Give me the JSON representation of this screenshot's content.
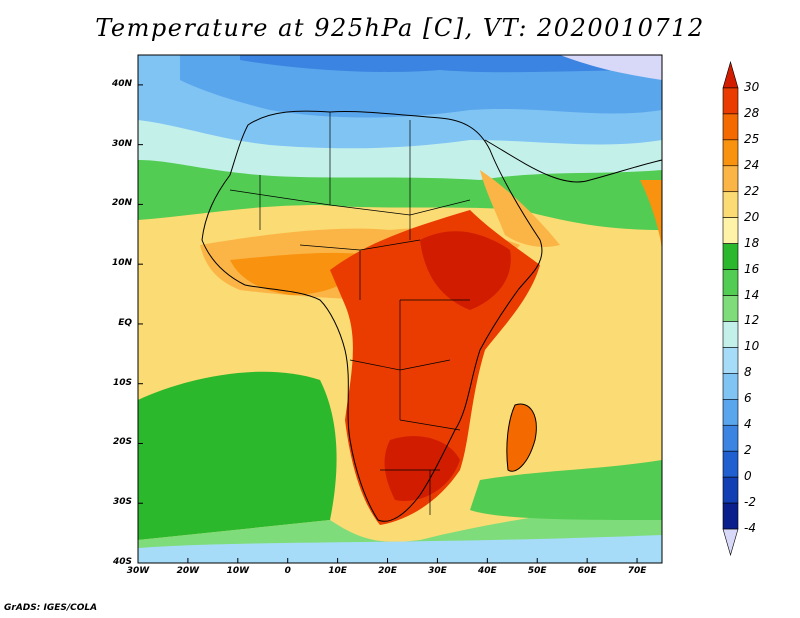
{
  "title": "Temperature at 925hPa [C], VT: 2020010712",
  "credit": "GrADS: IGES/COLA",
  "map": {
    "lat_range": [
      -40,
      45
    ],
    "lon_range": [
      -30,
      75
    ],
    "lat_ticks": [
      "40N",
      "30N",
      "20N",
      "10N",
      "EQ",
      "10S",
      "20S",
      "30S",
      "40S"
    ],
    "lat_tick_values": [
      40,
      30,
      20,
      10,
      0,
      -10,
      -20,
      -30,
      -40
    ],
    "lon_ticks": [
      "30W",
      "20W",
      "10W",
      "0",
      "10E",
      "20E",
      "30E",
      "40E",
      "50E",
      "60E",
      "70E"
    ],
    "lon_tick_values": [
      -30,
      -20,
      -10,
      0,
      10,
      20,
      30,
      40,
      50,
      60,
      70
    ]
  },
  "colorbar": {
    "labels": [
      "30",
      "28",
      "25",
      "24",
      "22",
      "20",
      "18",
      "16",
      "14",
      "12",
      "10",
      "8",
      "6",
      "4",
      "2",
      "0",
      "-2",
      "-4"
    ],
    "colors": [
      "#d11c00",
      "#ea3c00",
      "#f46a00",
      "#f9920f",
      "#fbb547",
      "#fbdb73",
      "#fff3a8",
      "#2cb82c",
      "#52cc52",
      "#7fdc7a",
      "#c4f0ea",
      "#a6dcf8",
      "#80c4f4",
      "#5aa6ec",
      "#3b84e1",
      "#1f5fcf",
      "#123fb4",
      "#0b1f8c",
      "#d8d8f8"
    ]
  },
  "regions": [
    {
      "name": "ocean-warm",
      "color": "#fbdb73"
    },
    {
      "name": "ocean-green",
      "color": "#2cb82c"
    },
    {
      "name": "north-cool",
      "color": "#5aa6ec"
    },
    {
      "name": "mediterranean",
      "color": "#80c4f4"
    },
    {
      "name": "sahel",
      "color": "#fbb547"
    },
    {
      "name": "hot-core",
      "color": "#ea3c00"
    },
    {
      "name": "hottest",
      "color": "#d11c00"
    }
  ]
}
